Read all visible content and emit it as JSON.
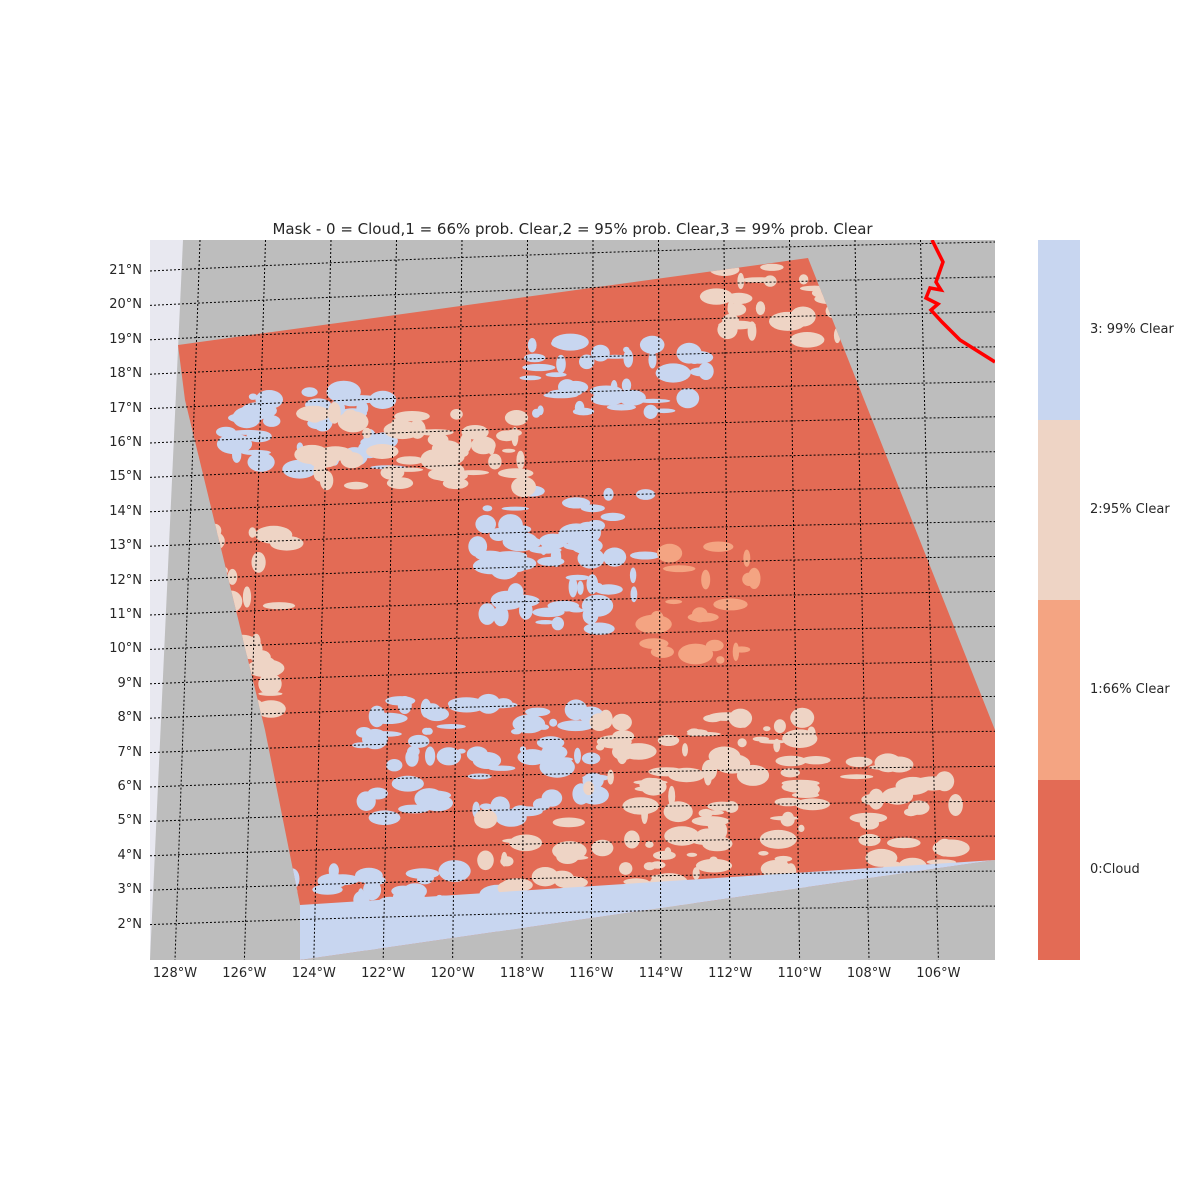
{
  "title": "Mask - 0 = Cloud,1 = 66% prob. Clear,2 = 95% prob. Clear,3 = 99% prob. Clear",
  "map": {
    "lat_labels": [
      "21°N",
      "20°N",
      "19°N",
      "18°N",
      "17°N",
      "16°N",
      "15°N",
      "14°N",
      "13°N",
      "12°N",
      "11°N",
      "10°N",
      "9°N",
      "8°N",
      "7°N",
      "6°N",
      "5°N",
      "4°N",
      "3°N",
      "2°N"
    ],
    "lon_labels": [
      "128°W",
      "126°W",
      "124°W",
      "122°W",
      "120°W",
      "118°W",
      "116°W",
      "114°W",
      "112°W",
      "110°W",
      "108°W",
      "106°W"
    ],
    "background_color": "#bdbdbd",
    "outside_color": "#e8e8f0",
    "gridline_color": "#000000",
    "coastline_color": "#ff0000"
  },
  "colorbar": {
    "categories": [
      {
        "value": 3,
        "label": "3: 99% Clear",
        "color": "#c8d6f0"
      },
      {
        "value": 2,
        "label": "2:95% Clear",
        "color": "#eed4c5"
      },
      {
        "value": 1,
        "label": "1:66% Clear",
        "color": "#f4a482"
      },
      {
        "value": 0,
        "label": "0:Cloud",
        "color": "#e36b55"
      }
    ]
  }
}
